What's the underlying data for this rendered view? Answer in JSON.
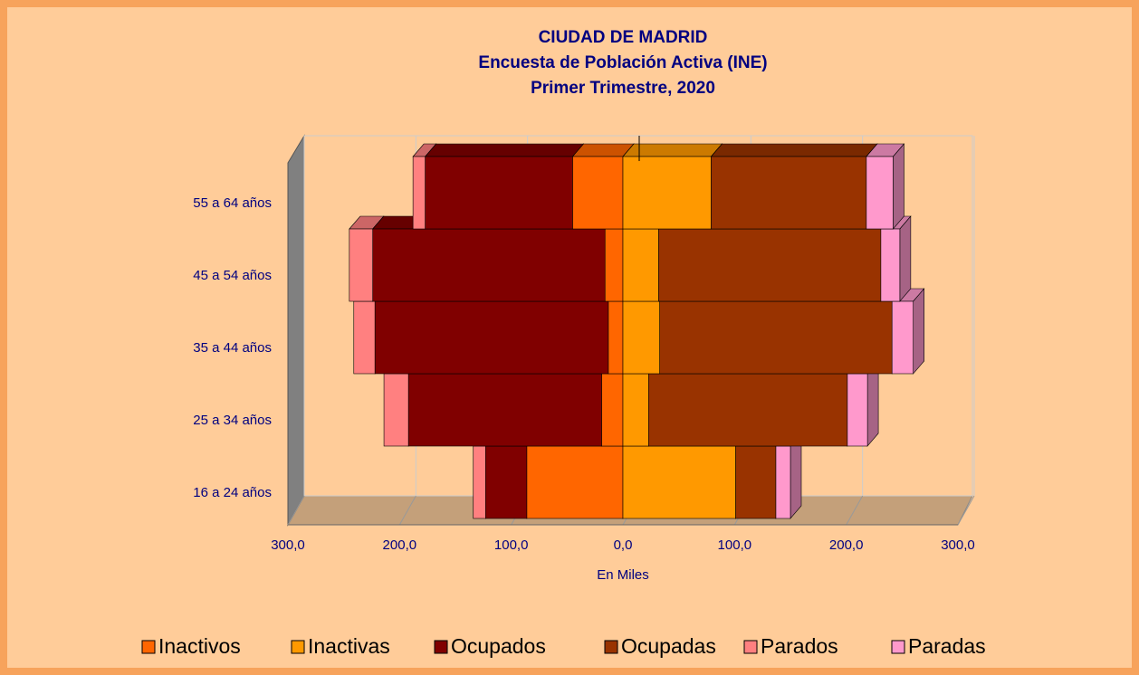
{
  "chart_data": {
    "type": "pyramid",
    "title": [
      "CIUDAD DE MADRID",
      "Encuesta de Población Activa (INE)",
      "Primer Trimestre, 2020"
    ],
    "x_label": "En Miles",
    "categories": [
      "16 a 24 años",
      "25 a 34 años",
      "35 a 44 años",
      "45 a 54 años",
      "55 a 64 años"
    ],
    "series": [
      {
        "name": "Inactivos",
        "color": "#ff6600",
        "side": "left",
        "values": [
          86,
          19,
          13,
          16,
          45
        ]
      },
      {
        "name": "Inactivas",
        "color": "#ff9900",
        "side": "right",
        "values": [
          101,
          23,
          33,
          32,
          79
        ]
      },
      {
        "name": "Ocupados",
        "color": "#800000",
        "side": "left",
        "values": [
          37,
          173,
          209,
          208,
          132
        ]
      },
      {
        "name": "Ocupadas",
        "color": "#993300",
        "side": "right",
        "values": [
          36,
          178,
          208,
          199,
          139
        ]
      },
      {
        "name": "Parados",
        "color": "#ff8080",
        "side": "left",
        "values": [
          11,
          22,
          19,
          21,
          11
        ]
      },
      {
        "name": "Paradas",
        "color": "#ff99cc",
        "side": "right",
        "values": [
          13,
          18,
          19,
          17,
          24
        ]
      }
    ],
    "xlim": [
      -300,
      300
    ],
    "xticks": [
      {
        "value": -300,
        "label": "300,0"
      },
      {
        "value": -200,
        "label": "200,0"
      },
      {
        "value": -100,
        "label": "100,0"
      },
      {
        "value": 0,
        "label": "0,0"
      },
      {
        "value": 100,
        "label": "100,0"
      },
      {
        "value": 200,
        "label": "200,0"
      },
      {
        "value": 300,
        "label": "300,0"
      }
    ],
    "grid": true,
    "legend": "bottom"
  }
}
